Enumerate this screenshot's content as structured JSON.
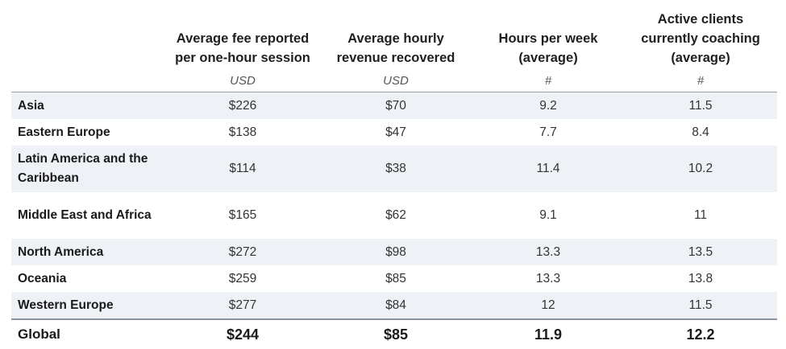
{
  "headers": {
    "region": "",
    "fee": "Average fee reported per one-hour session",
    "revenue": "Average hourly revenue recovered",
    "hours": "Hours per week (average)",
    "clients": "Active clients currently coaching (average)"
  },
  "units": {
    "region": "",
    "fee": "USD",
    "revenue": "USD",
    "hours": "#",
    "clients": "#"
  },
  "rows": [
    {
      "region": "Asia",
      "fee": "$226",
      "revenue": "$70",
      "hours": "9.2",
      "clients": "11.5"
    },
    {
      "region": "Eastern Europe",
      "fee": "$138",
      "revenue": "$47",
      "hours": "7.7",
      "clients": "8.4"
    },
    {
      "region": "Latin America and the Caribbean",
      "fee": "$114",
      "revenue": "$38",
      "hours": "11.4",
      "clients": "10.2"
    },
    {
      "region": "Middle East and Africa",
      "fee": "$165",
      "revenue": "$62",
      "hours": "9.1",
      "clients": "11"
    },
    {
      "region": "North America",
      "fee": "$272",
      "revenue": "$98",
      "hours": "13.3",
      "clients": "13.5"
    },
    {
      "region": "Oceania",
      "fee": "$259",
      "revenue": "$85",
      "hours": "13.3",
      "clients": "13.8"
    },
    {
      "region": "Western Europe",
      "fee": "$277",
      "revenue": "$84",
      "hours": "12",
      "clients": "11.5"
    }
  ],
  "total": {
    "region": "Global",
    "fee": "$244",
    "revenue": "$85",
    "hours": "11.9",
    "clients": "12.2"
  },
  "colors": {
    "row_shade": "#eef1f5",
    "rule": "#8c96a1"
  }
}
